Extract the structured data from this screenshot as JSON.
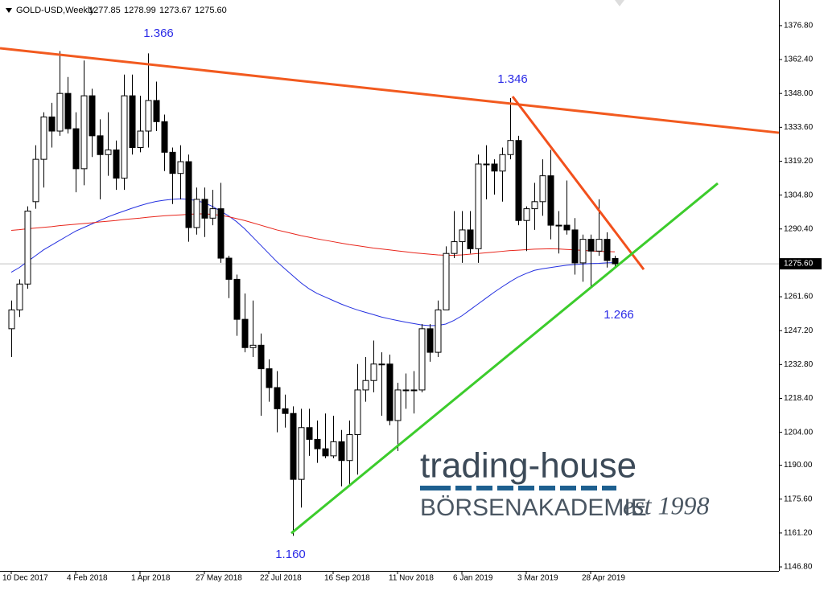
{
  "chart_data": {
    "type": "candlestick",
    "title": "GOLD-USD,Weekly",
    "ohlc_labels": [
      "1277.85",
      "1278.99",
      "1273.67",
      "1275.60"
    ],
    "categories": [
      "10 Dec 2017",
      null,
      null,
      null,
      null,
      null,
      null,
      null,
      "4 Feb 2018",
      null,
      null,
      null,
      null,
      null,
      null,
      null,
      "1 Apr 2018",
      null,
      null,
      null,
      null,
      null,
      null,
      null,
      "27 May 2018",
      null,
      null,
      null,
      null,
      null,
      null,
      null,
      "22 Jul 2018",
      null,
      null,
      null,
      null,
      null,
      null,
      null,
      "16 Sep 2018",
      null,
      null,
      null,
      null,
      null,
      null,
      null,
      "11 Nov 2018",
      null,
      null,
      null,
      null,
      null,
      null,
      null,
      "6 Jan 2019",
      null,
      null,
      null,
      null,
      null,
      null,
      null,
      "3 Mar 2019",
      null,
      null,
      null,
      null,
      null,
      null,
      null,
      "28 Apr 2019",
      null,
      null,
      null
    ],
    "open": [
      1248,
      1256,
      1267,
      1302,
      1320,
      1338,
      1332,
      1348,
      1333,
      1316,
      1347,
      1330,
      1322,
      1324,
      1312,
      1347,
      1325,
      1332,
      1345,
      1336,
      1323,
      1314,
      1319,
      1291,
      1303,
      1295,
      1299,
      1278,
      1269,
      1252,
      1240,
      1241,
      1231,
      1223,
      1214,
      1212,
      1184,
      1206,
      1201,
      1197,
      1194,
      1200,
      1192,
      1203,
      1222,
      1226,
      1233,
      1233,
      1209,
      1222,
      1222,
      1222,
      1248,
      1238,
      1256,
      1280,
      1285,
      1290,
      1282,
      1318,
      1318,
      1315,
      1322,
      1328,
      1294,
      1299,
      1302,
      1313,
      1292,
      1292,
      1290,
      1276,
      1286,
      1281,
      1286,
      1277.85
    ],
    "high": [
      1260,
      1269,
      1300,
      1326,
      1340,
      1344,
      1366,
      1355,
      1340,
      1362,
      1350,
      1337,
      1340,
      1328,
      1356,
      1356,
      1347,
      1365,
      1353,
      1339,
      1325,
      1326,
      1322,
      1308,
      1308,
      1307,
      1310,
      1279,
      1271,
      1263,
      1260,
      1246,
      1235,
      1230,
      1220,
      1215,
      1214,
      1214,
      1209,
      1212,
      1211,
      1205,
      1209,
      1233,
      1236,
      1243,
      1238,
      1237,
      1225,
      1229,
      1230,
      1250,
      1250,
      1260,
      1283,
      1298,
      1298,
      1298,
      1322,
      1326,
      1320,
      1325,
      1346,
      1330,
      1300,
      1310,
      1320,
      1324,
      1298,
      1311,
      1295,
      1288,
      1288,
      1303,
      1289,
      1278.99
    ],
    "low": [
      1236,
      1253,
      1265,
      1299,
      1308,
      1325,
      1330,
      1331,
      1306,
      1309,
      1321,
      1303,
      1313,
      1307,
      1307,
      1322,
      1323,
      1325,
      1332,
      1315,
      1301,
      1303,
      1285,
      1288,
      1287,
      1292,
      1276,
      1261,
      1245,
      1238,
      1236,
      1211,
      1217,
      1204,
      1206,
      1160,
      1172,
      1194,
      1191,
      1193,
      1193,
      1181,
      1182,
      1186,
      1217,
      1221,
      1211,
      1207,
      1196,
      1214,
      1212,
      1221,
      1234,
      1236,
      1256,
      1278,
      1276,
      1280,
      1276,
      1303,
      1305,
      1302,
      1320,
      1292,
      1281,
      1290,
      1296,
      1286,
      1280,
      1288,
      1271,
      1268,
      1266,
      1279,
      1274,
      1273.67
    ],
    "close": [
      1256,
      1267,
      1298,
      1320,
      1338,
      1332,
      1348,
      1333,
      1316,
      1347,
      1330,
      1322,
      1324,
      1312,
      1347,
      1325,
      1332,
      1345,
      1336,
      1323,
      1314,
      1319,
      1291,
      1303,
      1295,
      1299,
      1278,
      1269,
      1252,
      1240,
      1241,
      1231,
      1223,
      1214,
      1212,
      1184,
      1206,
      1201,
      1197,
      1194,
      1200,
      1192,
      1203,
      1222,
      1226,
      1233,
      1233,
      1209,
      1222,
      1222,
      1222,
      1248,
      1238,
      1256,
      1280,
      1285,
      1290,
      1282,
      1318,
      1318,
      1315,
      1322,
      1328,
      1294,
      1299,
      1302,
      1313,
      1292,
      1292,
      1290,
      1276,
      1286,
      1281,
      1286,
      1277,
      1275.6
    ],
    "moving_averages": [
      {
        "color": "#2430e0",
        "values": [
          1272,
          1274,
          1276.5,
          1279,
          1281.5,
          1283.5,
          1285.5,
          1287.5,
          1289.5,
          1291,
          1292.5,
          1294,
          1295.5,
          1296.8,
          1298,
          1299.2,
          1300.3,
          1301.3,
          1302.1,
          1302.6,
          1303,
          1303.2,
          1303,
          1302.5,
          1301.5,
          1300,
          1298,
          1296,
          1293.5,
          1290.5,
          1287,
          1283.5,
          1280,
          1276.5,
          1273.5,
          1270.5,
          1267.5,
          1265,
          1263,
          1261.5,
          1260,
          1258.5,
          1257.2,
          1256,
          1255,
          1254,
          1253,
          1252.2,
          1251.5,
          1250.8,
          1250.2,
          1249.6,
          1249.3,
          1249.4,
          1250,
          1251.5,
          1253.5,
          1256,
          1258.5,
          1261,
          1263.5,
          1265.8,
          1268,
          1270,
          1271.5,
          1272.8,
          1273.5,
          1274,
          1274.5,
          1275,
          1275.3,
          1275.5,
          1275.7,
          1275.8,
          1276,
          1276.1
        ]
      },
      {
        "color": "#e8261c",
        "values": [
          1289.8,
          1290.1,
          1290.5,
          1290.8,
          1291.1,
          1291.4,
          1291.8,
          1292.1,
          1292.4,
          1292.7,
          1293,
          1293.4,
          1293.7,
          1294,
          1294.4,
          1294.7,
          1295,
          1295.4,
          1295.7,
          1296,
          1296.2,
          1296.4,
          1296.6,
          1296.8,
          1296.8,
          1296.6,
          1296.2,
          1295.6,
          1294.8,
          1294,
          1293,
          1292,
          1291,
          1290,
          1289.2,
          1288.4,
          1287.6,
          1286.9,
          1286.2,
          1285.6,
          1285,
          1284.4,
          1283.8,
          1283.3,
          1282.8,
          1282.3,
          1281.9,
          1281.5,
          1281.1,
          1280.7,
          1280.3,
          1280,
          1279.7,
          1279.4,
          1279.2,
          1279.2,
          1279.4,
          1279.7,
          1280,
          1280.3,
          1280.6,
          1280.9,
          1281.2,
          1281.4,
          1281.6,
          1281.8,
          1281.9,
          1282,
          1281.9,
          1281.7,
          1281.5,
          1281.3,
          1281.1,
          1280.9,
          1280.8,
          1280.7
        ]
      }
    ],
    "trend_lines": [
      {
        "color": "#f25a1f",
        "x": [
          -1.4,
          95.4
        ],
        "y": [
          1367.2,
          1331.3
        ]
      },
      {
        "color": "#f2501c",
        "x": [
          62.3,
          78.6
        ],
        "y": [
          1346.7,
          1273.2
        ]
      },
      {
        "color": "#3ccc2c",
        "x": [
          34.8,
          87.8
        ],
        "y": [
          1161.1,
          1309.8
        ]
      }
    ],
    "annotations": [
      {
        "text": "1.366",
        "x": 18.3,
        "y": 1373.4
      },
      {
        "text": "1.346",
        "x": 62.3,
        "y": 1353.9
      },
      {
        "text": "1.266",
        "x": 75.5,
        "y": 1253.8
      },
      {
        "text": "1.160",
        "x": 34.7,
        "y": 1151.9
      }
    ],
    "ylim": [
      1145.1,
      1387.7
    ],
    "yticks": [
      {
        "value": 1146.8,
        "label": "1146.80"
      },
      {
        "value": 1161.2,
        "label": "1161.20"
      },
      {
        "value": 1175.6,
        "label": "1175.60"
      },
      {
        "value": 1190,
        "label": "1190.00"
      },
      {
        "value": 1204,
        "label": "1204.00"
      },
      {
        "value": 1218.4,
        "label": "1218.40"
      },
      {
        "value": 1232.8,
        "label": "1232.80"
      },
      {
        "value": 1247.2,
        "label": "1247.20"
      },
      {
        "value": 1261.6,
        "label": "1261.60"
      },
      {
        "value": 1290.4,
        "label": "1290.40"
      },
      {
        "value": 1304.8,
        "label": "1304.80"
      },
      {
        "value": 1319.2,
        "label": "1319.20"
      },
      {
        "value": 1333.6,
        "label": "1333.60"
      },
      {
        "value": 1348,
        "label": "1348.00"
      },
      {
        "value": 1362.4,
        "label": "1362.40"
      },
      {
        "value": 1376.8,
        "label": "1376.80"
      }
    ]
  },
  "watermark": {
    "brand": "trading-house",
    "subtitle": "BÖRSENAKADEMIE",
    "est": "est 1998"
  }
}
